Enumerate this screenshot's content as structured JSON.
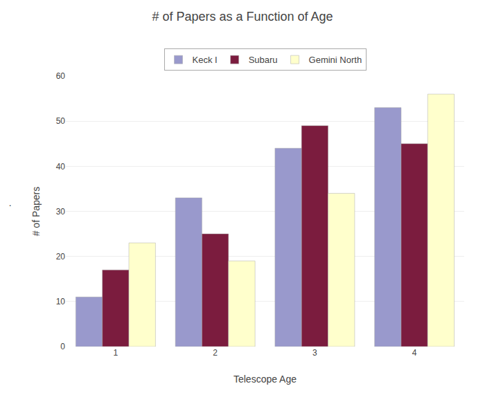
{
  "chart_data": {
    "type": "bar",
    "title": "# of Papers as a Function of Age",
    "xlabel": "Telescope Age",
    "ylabel": "# of Papers",
    "categories": [
      1,
      2,
      3,
      4
    ],
    "series": [
      {
        "name": "Keck I",
        "color": "#9999cc",
        "values": [
          11,
          33,
          44,
          53
        ]
      },
      {
        "name": "Subaru",
        "color": "#7b1c3e",
        "values": [
          17,
          25,
          49,
          45
        ]
      },
      {
        "name": "Gemini North",
        "color": "#ffffcc",
        "values": [
          23,
          19,
          34,
          56
        ]
      }
    ],
    "ylim": [
      0,
      60
    ],
    "yticks": [
      0,
      10,
      20,
      30,
      40,
      50,
      60
    ],
    "grid": true,
    "legend": "upper center",
    "annotations": [
      "."
    ]
  }
}
